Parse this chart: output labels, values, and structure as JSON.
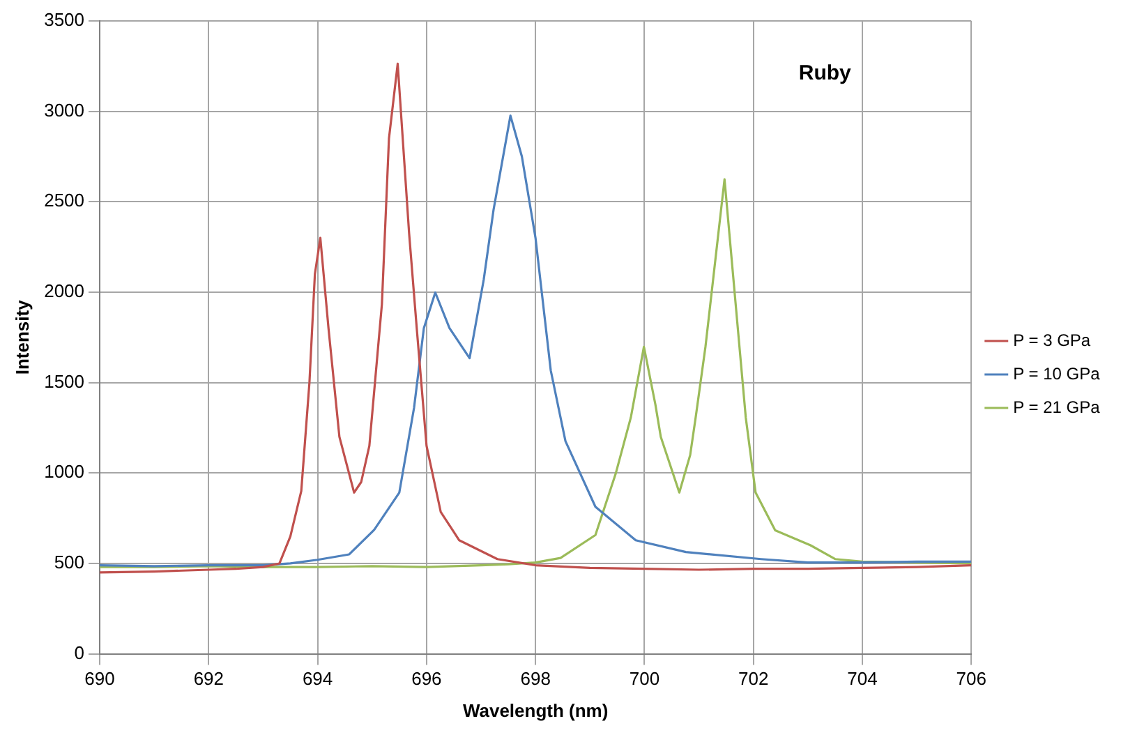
{
  "chart_data": {
    "type": "line",
    "xlabel": "Wavelength (nm)",
    "ylabel": "Intensity",
    "annotations": [
      "Ruby"
    ],
    "xlim": [
      690,
      706
    ],
    "xticks": [
      690,
      692,
      694,
      696,
      698,
      700,
      702,
      704,
      706
    ],
    "ylim": [
      0,
      3500
    ],
    "yticks": [
      0,
      500,
      1000,
      1500,
      2000,
      2500,
      3000,
      3500
    ],
    "grid": true,
    "legend": "right",
    "marker": "none",
    "line_style": "solid",
    "series": [
      {
        "name": "P = 3 GPa",
        "color": "#c0504d",
        "x": [
          690,
          691,
          692,
          692.5,
          693,
          693.3,
          693.5,
          693.7,
          693.85,
          693.95,
          694.05,
          694.2,
          694.4,
          694.67,
          694.8,
          694.95,
          695.18,
          695.31,
          695.47,
          695.68,
          695.82,
          696,
          696.26,
          696.6,
          697.3,
          698,
          699,
          700,
          701,
          702,
          703,
          704,
          705,
          706
        ],
        "values": [
          450,
          455,
          465,
          470,
          480,
          500,
          650,
          900,
          1500,
          2100,
          2300,
          1800,
          1200,
          892,
          950,
          1150,
          1933,
          2850,
          3263,
          2324,
          1800,
          1150,
          785,
          628,
          524,
          490,
          475,
          470,
          465,
          470,
          470,
          475,
          480,
          490
        ]
      },
      {
        "name": "P = 10 GPa",
        "color": "#4f81bd",
        "x": [
          690,
          691,
          692,
          693,
          693.5,
          694,
          694.58,
          695.04,
          695.5,
          695.77,
          695.95,
          696.16,
          696.42,
          696.79,
          697.05,
          697.23,
          697.54,
          697.75,
          698,
          698.28,
          698.55,
          699.1,
          699.84,
          700.76,
          702.14,
          703,
          704,
          705,
          706
        ],
        "values": [
          490,
          485,
          490,
          490,
          500,
          520,
          550,
          686,
          892,
          1360,
          1800,
          1998,
          1802,
          1635,
          2070,
          2456,
          2976,
          2750,
          2300,
          1567,
          1176,
          813,
          628,
          563,
          524,
          505,
          505,
          510,
          510
        ]
      },
      {
        "name": "P = 21 GPa",
        "color": "#9bbb59",
        "x": [
          690,
          691,
          692,
          693,
          694,
          695,
          696,
          697,
          697.5,
          698,
          698.46,
          699.1,
          699.47,
          699.75,
          699.99,
          700.2,
          700.3,
          700.64,
          700.84,
          700.94,
          701.12,
          701.47,
          701.86,
          702.04,
          702.4,
          703.05,
          703.5,
          704,
          705,
          706
        ],
        "values": [
          480,
          480,
          485,
          480,
          480,
          485,
          480,
          490,
          495,
          505,
          530,
          657,
          994,
          1307,
          1698,
          1380,
          1200,
          892,
          1100,
          1307,
          1698,
          2624,
          1307,
          892,
          683,
          600,
          524,
          510,
          505,
          500
        ]
      }
    ]
  }
}
